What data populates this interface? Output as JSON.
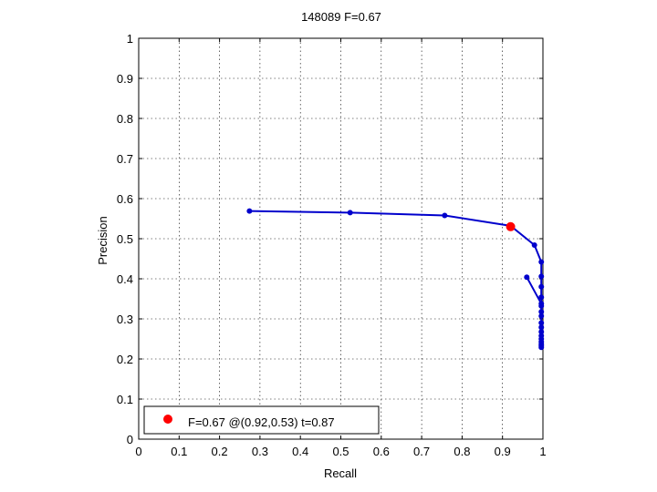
{
  "chart_data": {
    "type": "line",
    "title": "148089 F=0.67",
    "xlabel": "Recall",
    "ylabel": "Precision",
    "xlim": [
      0,
      1
    ],
    "ylim": [
      0,
      1
    ],
    "xticks": [
      0,
      0.1,
      0.2,
      0.3,
      0.4,
      0.5,
      0.6,
      0.7,
      0.8,
      0.9,
      1
    ],
    "yticks": [
      0,
      0.1,
      0.2,
      0.3,
      0.4,
      0.5,
      0.6,
      0.7,
      0.8,
      0.9,
      1
    ],
    "xtick_labels": [
      "0",
      "0.1",
      "0.2",
      "0.3",
      "0.4",
      "0.5",
      "0.6",
      "0.7",
      "0.8",
      "0.9",
      "1"
    ],
    "ytick_labels": [
      "0",
      "0.1",
      "0.2",
      "0.3",
      "0.4",
      "0.5",
      "0.6",
      "0.7",
      "0.8",
      "0.9",
      "1"
    ],
    "grid": true,
    "legend_position": "bottom-left",
    "series": [
      {
        "color": "#0000cc",
        "x": [
          0.274,
          0.523,
          0.757,
          0.92,
          0.979,
          0.996,
          0.996,
          0.996,
          0.996,
          0.996,
          0.996,
          0.996,
          0.996,
          0.996,
          0.996,
          0.996,
          0.996,
          0.996,
          0.996,
          0.996,
          0.996
        ],
        "y": [
          0.569,
          0.565,
          0.558,
          0.532,
          0.484,
          0.442,
          0.406,
          0.38,
          0.354,
          0.332,
          0.318,
          0.307,
          0.29,
          0.279,
          0.268,
          0.258,
          0.25,
          0.243,
          0.237,
          0.233,
          0.229
        ]
      },
      {
        "color": "#0000cc",
        "x": [
          0.96,
          0.996
        ],
        "y": [
          0.404,
          0.338
        ]
      }
    ],
    "best_point": {
      "x": 0.92,
      "y": 0.53,
      "color": "#ff0000",
      "label": "F=0.67 @(0.92,0.53) t=0.87"
    }
  }
}
